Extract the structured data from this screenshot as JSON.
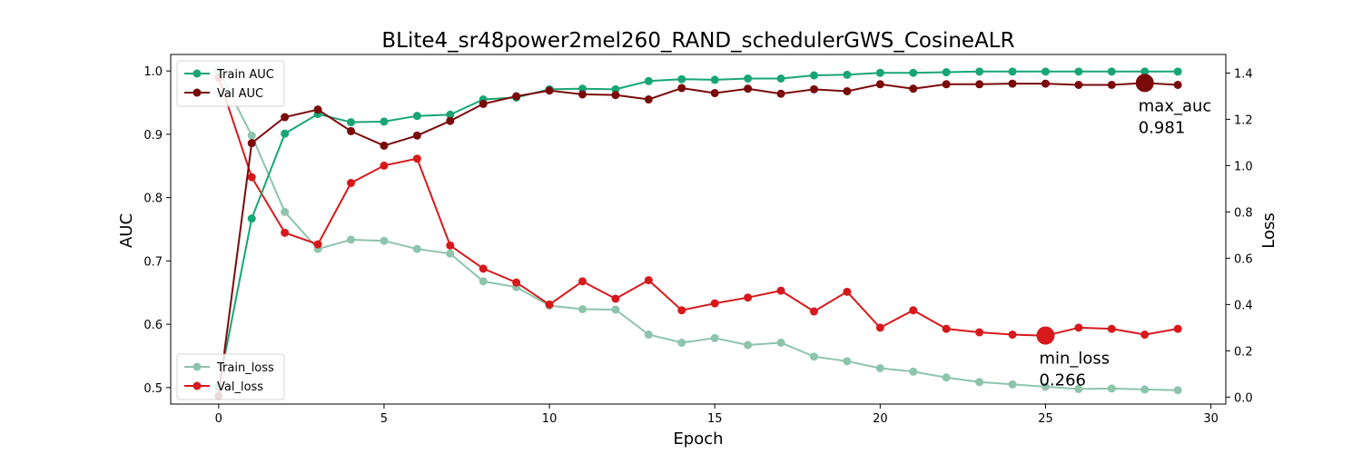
{
  "chart_data": {
    "type": "line",
    "title": "BLite4_sr48power2mel260_RAND_schedulerGWS_CosineALR",
    "xlabel": "Epoch",
    "ylabel_left": "AUC",
    "ylabel_right": "Loss",
    "xlim": [
      -1.45,
      30.45
    ],
    "ylim_left": [
      0.474,
      1.026
    ],
    "ylim_right": [
      -0.03,
      1.48
    ],
    "x_ticks": [
      0,
      5,
      10,
      15,
      20,
      25,
      30
    ],
    "y_left_ticks": [
      0.5,
      0.6,
      0.7,
      0.8,
      0.9,
      1.0
    ],
    "y_left_tick_labels": [
      "0.5",
      "0.6",
      "0.7",
      "0.8",
      "0.9",
      "1.0"
    ],
    "y_right_ticks": [
      0.0,
      0.2,
      0.4,
      0.6,
      0.8,
      1.0,
      1.2,
      1.4
    ],
    "y_right_tick_labels": [
      "0.0",
      "0.2",
      "0.4",
      "0.6",
      "0.8",
      "1.0",
      "1.2",
      "1.4"
    ],
    "grid": false,
    "x": [
      0,
      1,
      2,
      3,
      4,
      5,
      6,
      7,
      8,
      9,
      10,
      11,
      12,
      13,
      14,
      15,
      16,
      17,
      18,
      19,
      20,
      21,
      22,
      23,
      24,
      25,
      26,
      27,
      28,
      29
    ],
    "series": [
      {
        "name": "Train AUC",
        "axis": "left",
        "color": "#17a673",
        "values": [
          0.501,
          0.767,
          0.901,
          0.932,
          0.919,
          0.92,
          0.929,
          0.931,
          0.955,
          0.958,
          0.971,
          0.972,
          0.971,
          0.984,
          0.987,
          0.986,
          0.988,
          0.988,
          0.993,
          0.994,
          0.997,
          0.997,
          0.998,
          0.999,
          0.999,
          0.999,
          0.999,
          0.999,
          0.999,
          0.999
        ]
      },
      {
        "name": "Val AUC",
        "axis": "left",
        "color": "#7a0a0a",
        "values": [
          0.487,
          0.886,
          0.927,
          0.939,
          0.905,
          0.882,
          0.898,
          0.921,
          0.948,
          0.96,
          0.969,
          0.963,
          0.962,
          0.955,
          0.973,
          0.965,
          0.972,
          0.964,
          0.971,
          0.968,
          0.979,
          0.972,
          0.979,
          0.979,
          0.98,
          0.98,
          0.978,
          0.978,
          0.981,
          0.978
        ]
      },
      {
        "name": "Train_loss",
        "axis": "right",
        "color": "#8dc4ac",
        "values": [
          1.41,
          1.13,
          0.8,
          0.64,
          0.68,
          0.675,
          0.64,
          0.62,
          0.5,
          0.475,
          0.395,
          0.38,
          0.378,
          0.27,
          0.235,
          0.255,
          0.225,
          0.235,
          0.175,
          0.155,
          0.125,
          0.11,
          0.085,
          0.065,
          0.055,
          0.045,
          0.035,
          0.037,
          0.033,
          0.03
        ]
      },
      {
        "name": "Val_loss",
        "axis": "right",
        "color": "#d7191c",
        "values": [
          1.38,
          0.95,
          0.71,
          0.66,
          0.925,
          1.0,
          1.03,
          0.655,
          0.555,
          0.495,
          0.4,
          0.5,
          0.425,
          0.505,
          0.375,
          0.405,
          0.43,
          0.46,
          0.37,
          0.455,
          0.3,
          0.375,
          0.295,
          0.28,
          0.27,
          0.265,
          0.3,
          0.295,
          0.27,
          0.295
        ]
      }
    ],
    "annotations": [
      {
        "name": "max_auc",
        "x": 28,
        "y": 0.981,
        "axis": "left",
        "color": "#7a0a0a",
        "label": "max_auc",
        "value": "0.981"
      },
      {
        "name": "min_loss",
        "x": 25,
        "y": 0.266,
        "axis": "right",
        "color": "#d7191c",
        "label": "min_loss",
        "value": "0.266"
      }
    ],
    "legends": [
      {
        "placement": "upper-left",
        "entries": [
          "Train AUC",
          "Val AUC"
        ]
      },
      {
        "placement": "lower-left",
        "entries": [
          "Train_loss",
          "Val_loss"
        ]
      }
    ]
  }
}
